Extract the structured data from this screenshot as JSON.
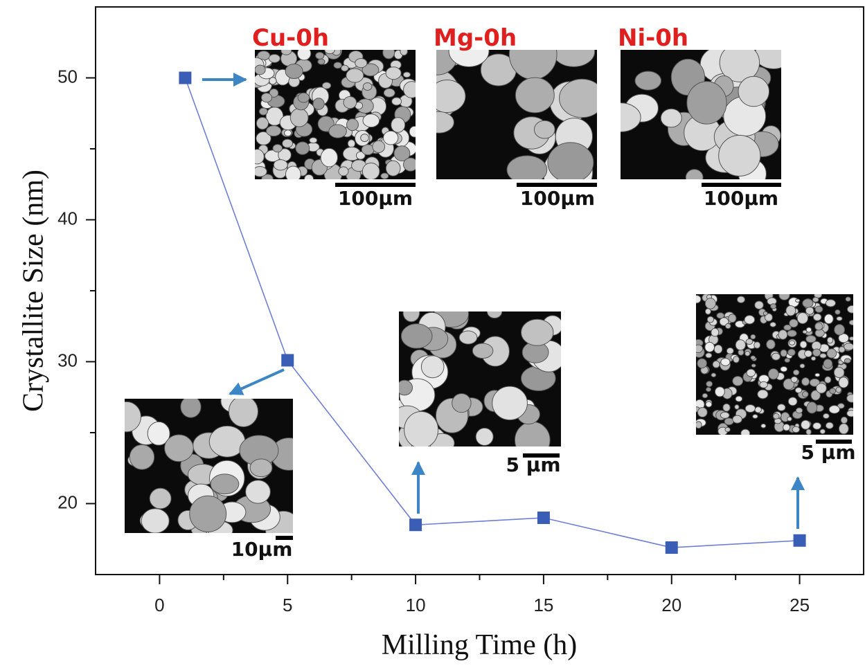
{
  "chart_data": {
    "type": "line",
    "x_label": "Milling Time (h)",
    "y_label": "Crystallite Size (nm)",
    "x": [
      1,
      5,
      10,
      15,
      20,
      25
    ],
    "values": [
      50,
      30.1,
      18.5,
      19,
      16.9,
      17.4
    ],
    "color": "#3a5db5",
    "line_color": "#6f7fd6",
    "xlim": [
      -2.5,
      27.5
    ],
    "xticks": [
      0,
      5,
      10,
      15,
      20,
      25
    ],
    "ylim": [
      15,
      55
    ],
    "yticks": [
      20,
      30,
      40,
      50
    ],
    "insets": [
      {
        "label": "Cu-0h",
        "scale": "100μm"
      },
      {
        "label": "Mg-0h",
        "scale": "100μm"
      },
      {
        "label": "Ni-0h",
        "scale": "100μm"
      },
      {
        "scale": "10μm"
      },
      {
        "scale": "5 μm"
      },
      {
        "scale": "5 μm"
      }
    ]
  }
}
